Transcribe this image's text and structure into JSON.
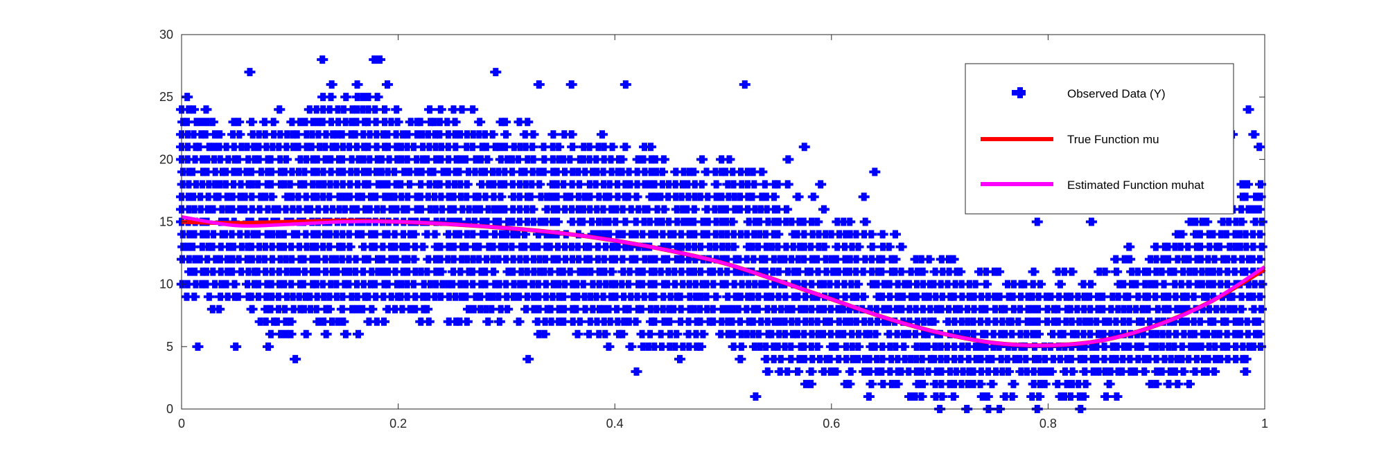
{
  "chart_data": {
    "type": "scatter",
    "title": "",
    "xlabel": "",
    "ylabel": "",
    "xlim": [
      0,
      1
    ],
    "ylim": [
      0,
      30
    ],
    "xticks": [
      "0",
      "0.2",
      "0.4",
      "0.6",
      "0.8",
      "1"
    ],
    "yticks": [
      "0",
      "5",
      "10",
      "15",
      "20",
      "25",
      "30"
    ],
    "grid": false,
    "legend_position": "top-right",
    "colors": {
      "observed": "#0000ff",
      "true_fn": "#ff0000",
      "estimated_fn": "#ff00ff",
      "axis": "#262626"
    },
    "legend": {
      "observed_label": "Observed Data (Y)",
      "true_label": "True Function mu",
      "estimated_label": "Estimated Function muhat"
    },
    "series": [
      {
        "name": "Observed Data (Y)",
        "kind": "scatter",
        "note_bands": "y is integer-valued; points fill x in [0,1] between lower and upper envelopes",
        "bands": [
          {
            "x": 0.0,
            "lo": 9,
            "hi": 25
          },
          {
            "x": 0.05,
            "lo": 7,
            "hi": 23
          },
          {
            "x": 0.1,
            "lo": 6,
            "hi": 24
          },
          {
            "x": 0.15,
            "lo": 6,
            "hi": 26
          },
          {
            "x": 0.2,
            "lo": 7,
            "hi": 24
          },
          {
            "x": 0.25,
            "lo": 7,
            "hi": 24
          },
          {
            "x": 0.3,
            "lo": 7,
            "hi": 23
          },
          {
            "x": 0.35,
            "lo": 6,
            "hi": 22
          },
          {
            "x": 0.4,
            "lo": 5,
            "hi": 22
          },
          {
            "x": 0.45,
            "lo": 5,
            "hi": 20
          },
          {
            "x": 0.5,
            "lo": 5,
            "hi": 20
          },
          {
            "x": 0.55,
            "lo": 3,
            "hi": 18
          },
          {
            "x": 0.6,
            "lo": 2,
            "hi": 16
          },
          {
            "x": 0.65,
            "lo": 1,
            "hi": 14
          },
          {
            "x": 0.7,
            "lo": 1,
            "hi": 12
          },
          {
            "x": 0.75,
            "lo": 1,
            "hi": 11
          },
          {
            "x": 0.8,
            "lo": 1,
            "hi": 11
          },
          {
            "x": 0.85,
            "lo": 1,
            "hi": 11
          },
          {
            "x": 0.9,
            "lo": 2,
            "hi": 14
          },
          {
            "x": 0.95,
            "lo": 2,
            "hi": 16
          },
          {
            "x": 1.0,
            "lo": 4,
            "hi": 19
          }
        ],
        "outliers": [
          {
            "x": 0.063,
            "y": 27
          },
          {
            "x": 0.13,
            "y": 28
          },
          {
            "x": 0.178,
            "y": 28
          },
          {
            "x": 0.183,
            "y": 28
          },
          {
            "x": 0.19,
            "y": 26
          },
          {
            "x": 0.29,
            "y": 27
          },
          {
            "x": 0.33,
            "y": 26
          },
          {
            "x": 0.36,
            "y": 26
          },
          {
            "x": 0.41,
            "y": 26
          },
          {
            "x": 0.52,
            "y": 26
          },
          {
            "x": 0.015,
            "y": 5
          },
          {
            "x": 0.05,
            "y": 5
          },
          {
            "x": 0.08,
            "y": 5
          },
          {
            "x": 0.105,
            "y": 4
          },
          {
            "x": 0.32,
            "y": 4
          },
          {
            "x": 0.42,
            "y": 3
          },
          {
            "x": 0.46,
            "y": 4
          },
          {
            "x": 0.53,
            "y": 1
          },
          {
            "x": 0.56,
            "y": 20
          },
          {
            "x": 0.575,
            "y": 21
          },
          {
            "x": 0.59,
            "y": 18
          },
          {
            "x": 0.64,
            "y": 19
          },
          {
            "x": 0.63,
            "y": 17
          },
          {
            "x": 0.79,
            "y": 15
          },
          {
            "x": 0.84,
            "y": 15
          },
          {
            "x": 0.89,
            "y": 20
          },
          {
            "x": 0.96,
            "y": 19
          },
          {
            "x": 0.97,
            "y": 22
          },
          {
            "x": 0.985,
            "y": 24
          },
          {
            "x": 0.99,
            "y": 22
          },
          {
            "x": 0.995,
            "y": 21
          },
          {
            "x": 0.7,
            "y": 0
          },
          {
            "x": 0.725,
            "y": 0
          },
          {
            "x": 0.745,
            "y": 0
          },
          {
            "x": 0.755,
            "y": 0
          },
          {
            "x": 0.79,
            "y": 0
          },
          {
            "x": 0.83,
            "y": 0
          }
        ]
      },
      {
        "name": "True Function mu",
        "kind": "line",
        "x": [
          0.0,
          0.05,
          0.1,
          0.15,
          0.2,
          0.25,
          0.3,
          0.35,
          0.4,
          0.45,
          0.5,
          0.55,
          0.6,
          0.65,
          0.7,
          0.75,
          0.8,
          0.85,
          0.9,
          0.95,
          1.0
        ],
        "y": [
          15.0,
          14.9,
          15.0,
          15.1,
          15.0,
          14.8,
          14.5,
          14.1,
          13.5,
          12.7,
          11.7,
          10.3,
          8.8,
          7.3,
          6.1,
          5.3,
          5.1,
          5.5,
          6.7,
          8.6,
          11.2
        ]
      },
      {
        "name": "Estimated Function muhat",
        "kind": "line",
        "x": [
          0.0,
          0.05,
          0.1,
          0.15,
          0.2,
          0.25,
          0.3,
          0.35,
          0.4,
          0.45,
          0.5,
          0.55,
          0.6,
          0.65,
          0.7,
          0.75,
          0.8,
          0.85,
          0.9,
          0.95,
          1.0
        ],
        "y": [
          15.4,
          14.7,
          14.8,
          15.0,
          15.0,
          14.8,
          14.5,
          14.1,
          13.5,
          12.7,
          11.7,
          10.3,
          8.8,
          7.3,
          6.1,
          5.3,
          5.1,
          5.5,
          6.7,
          8.6,
          11.4
        ]
      }
    ]
  }
}
